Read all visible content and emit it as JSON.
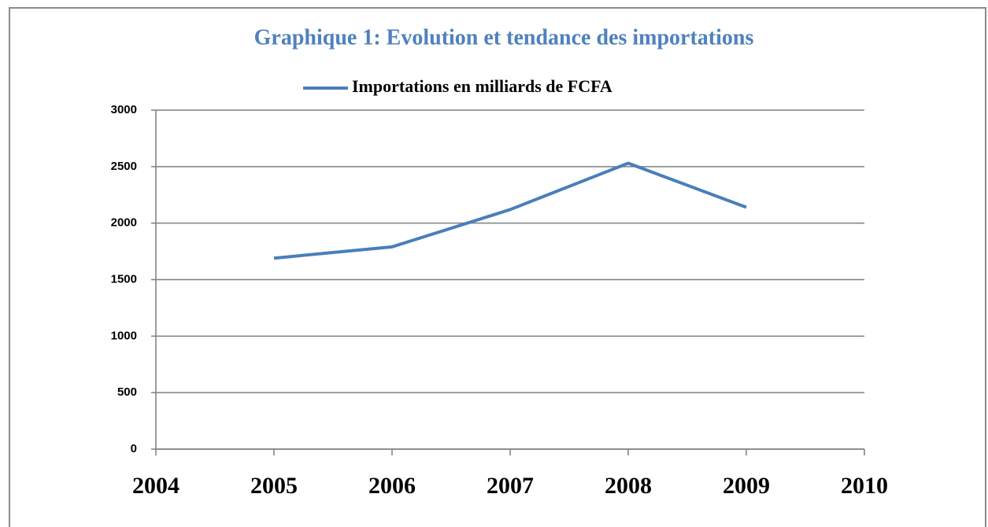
{
  "chart_data": {
    "type": "line",
    "title": "Graphique 1: Evolution et tendance des importations",
    "x": [
      2005,
      2006,
      2007,
      2008,
      2009
    ],
    "series": [
      {
        "name": "Importations en milliards de FCFA",
        "color": "#4a7ebb",
        "values": [
          1690,
          1790,
          2120,
          2530,
          2140
        ]
      }
    ],
    "xlim": [
      2004,
      2010
    ],
    "xticks": [
      2004,
      2005,
      2006,
      2007,
      2008,
      2009,
      2010
    ],
    "ylim": [
      0,
      3000
    ],
    "yticks": [
      0,
      500,
      1000,
      1500,
      2000,
      2500,
      3000
    ],
    "grid": true,
    "legend": "top"
  }
}
